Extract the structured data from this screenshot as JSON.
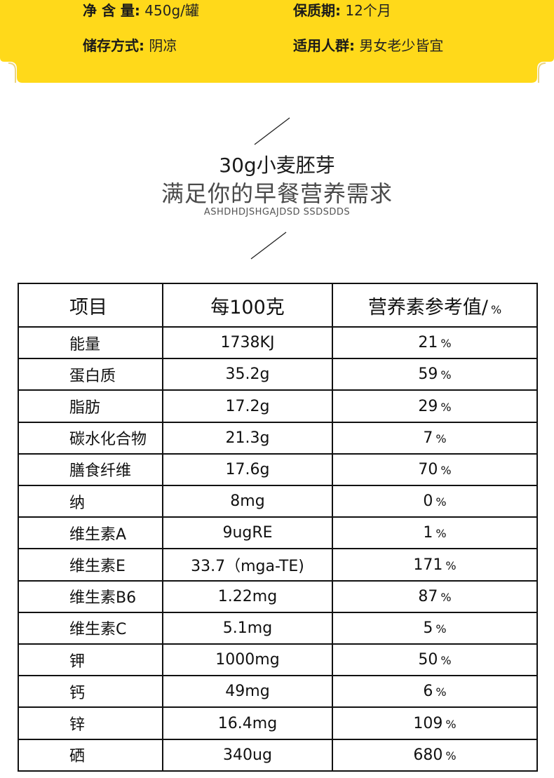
{
  "info": {
    "net_weight_label": "净 含 量:",
    "net_weight_value": "450g/罐",
    "shelf_life_label": "保质期:",
    "shelf_life_value": "12个月",
    "storage_label": "储存方式:",
    "storage_value": "阴凉",
    "audience_label": "适用人群:",
    "audience_value": "男女老少皆宜",
    "card_color": "#ffd91a"
  },
  "headline": {
    "title": "30g小麦胚芽",
    "subtitle": "满足你的早餐营养需求",
    "english": "ASHDHDJSHGAJDSD SSDSDDS"
  },
  "table": {
    "headers": [
      "项目",
      "每100克",
      "营养素参考值/"
    ],
    "header_pct_sign": "%",
    "pct_sign": "%",
    "rows": [
      {
        "name": "能量",
        "amount": "1738KJ",
        "nrv": "21"
      },
      {
        "name": "蛋白质",
        "amount": "35.2g",
        "nrv": "59"
      },
      {
        "name": "脂肪",
        "amount": "17.2g",
        "nrv": "29"
      },
      {
        "name": "碳水化合物",
        "amount": "21.3g",
        "nrv": "7"
      },
      {
        "name": "膳食纤维",
        "amount": "17.6g",
        "nrv": "70"
      },
      {
        "name": "纳",
        "amount": "8mg",
        "nrv": "0"
      },
      {
        "name": "维生素A",
        "amount": "9ugRE",
        "nrv": "1"
      },
      {
        "name": "维生素E",
        "amount": "33.7（mga-TE)",
        "nrv": "171"
      },
      {
        "name": "维生素B6",
        "amount": "1.22mg",
        "nrv": "87"
      },
      {
        "name": "维生素C",
        "amount": "5.1mg",
        "nrv": "5"
      },
      {
        "name": "钾",
        "amount": "1000mg",
        "nrv": "50"
      },
      {
        "name": "钙",
        "amount": "49mg",
        "nrv": "6"
      },
      {
        "name": "锌",
        "amount": "16.4mg",
        "nrv": "109"
      },
      {
        "name": "硒",
        "amount": "340ug",
        "nrv": "680"
      }
    ]
  }
}
